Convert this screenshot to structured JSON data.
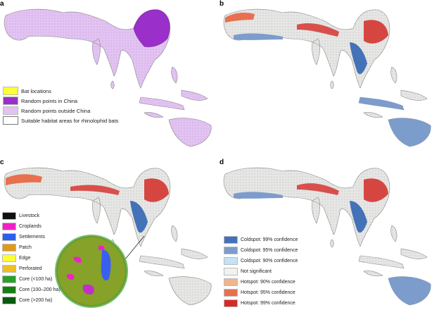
{
  "panels": {
    "a": {
      "label": "a",
      "legend": [
        {
          "label": "Bat locations",
          "color": "#ffff33"
        },
        {
          "label": "Random points in China",
          "color": "#9b2fc9"
        },
        {
          "label": "Random points outside China",
          "color": "#e2c3f2"
        },
        {
          "label": "Suitable habitat areas for rhinolophid bats",
          "color": "#ffffff"
        }
      ]
    },
    "b": {
      "label": "b"
    },
    "c": {
      "label": "c",
      "legend": [
        {
          "label": "Livestock",
          "color": "#111111"
        },
        {
          "label": "Croplands",
          "color": "#f020c8"
        },
        {
          "label": "Settlements",
          "color": "#2a5ff0"
        },
        {
          "label": "Patch",
          "color": "#e09a1a"
        },
        {
          "label": "Edge",
          "color": "#ffff30"
        },
        {
          "label": "Perforated",
          "color": "#f0c020"
        },
        {
          "label": "Core (<100 ha)",
          "color": "#2aa02a"
        },
        {
          "label": "Core (100–200 ha)",
          "color": "#148014"
        },
        {
          "label": "Core (>200 ha)",
          "color": "#0a5a10"
        }
      ]
    },
    "d": {
      "label": "d",
      "legend": [
        {
          "label": "Coldspot: 99% confidence",
          "color": "#4472b8"
        },
        {
          "label": "Coldspot: 95% confidence",
          "color": "#7c9ccc"
        },
        {
          "label": "Coldspot: 90% confidence",
          "color": "#c4e2f8"
        },
        {
          "label": "Not significant",
          "color": "#f2f2ee"
        },
        {
          "label": "Hotspot: 90% confidence",
          "color": "#f4b48a"
        },
        {
          "label": "Hotspot: 95% confidence",
          "color": "#e8704e"
        },
        {
          "label": "Hotspot: 99% confidence",
          "color": "#d42a26"
        }
      ]
    }
  }
}
